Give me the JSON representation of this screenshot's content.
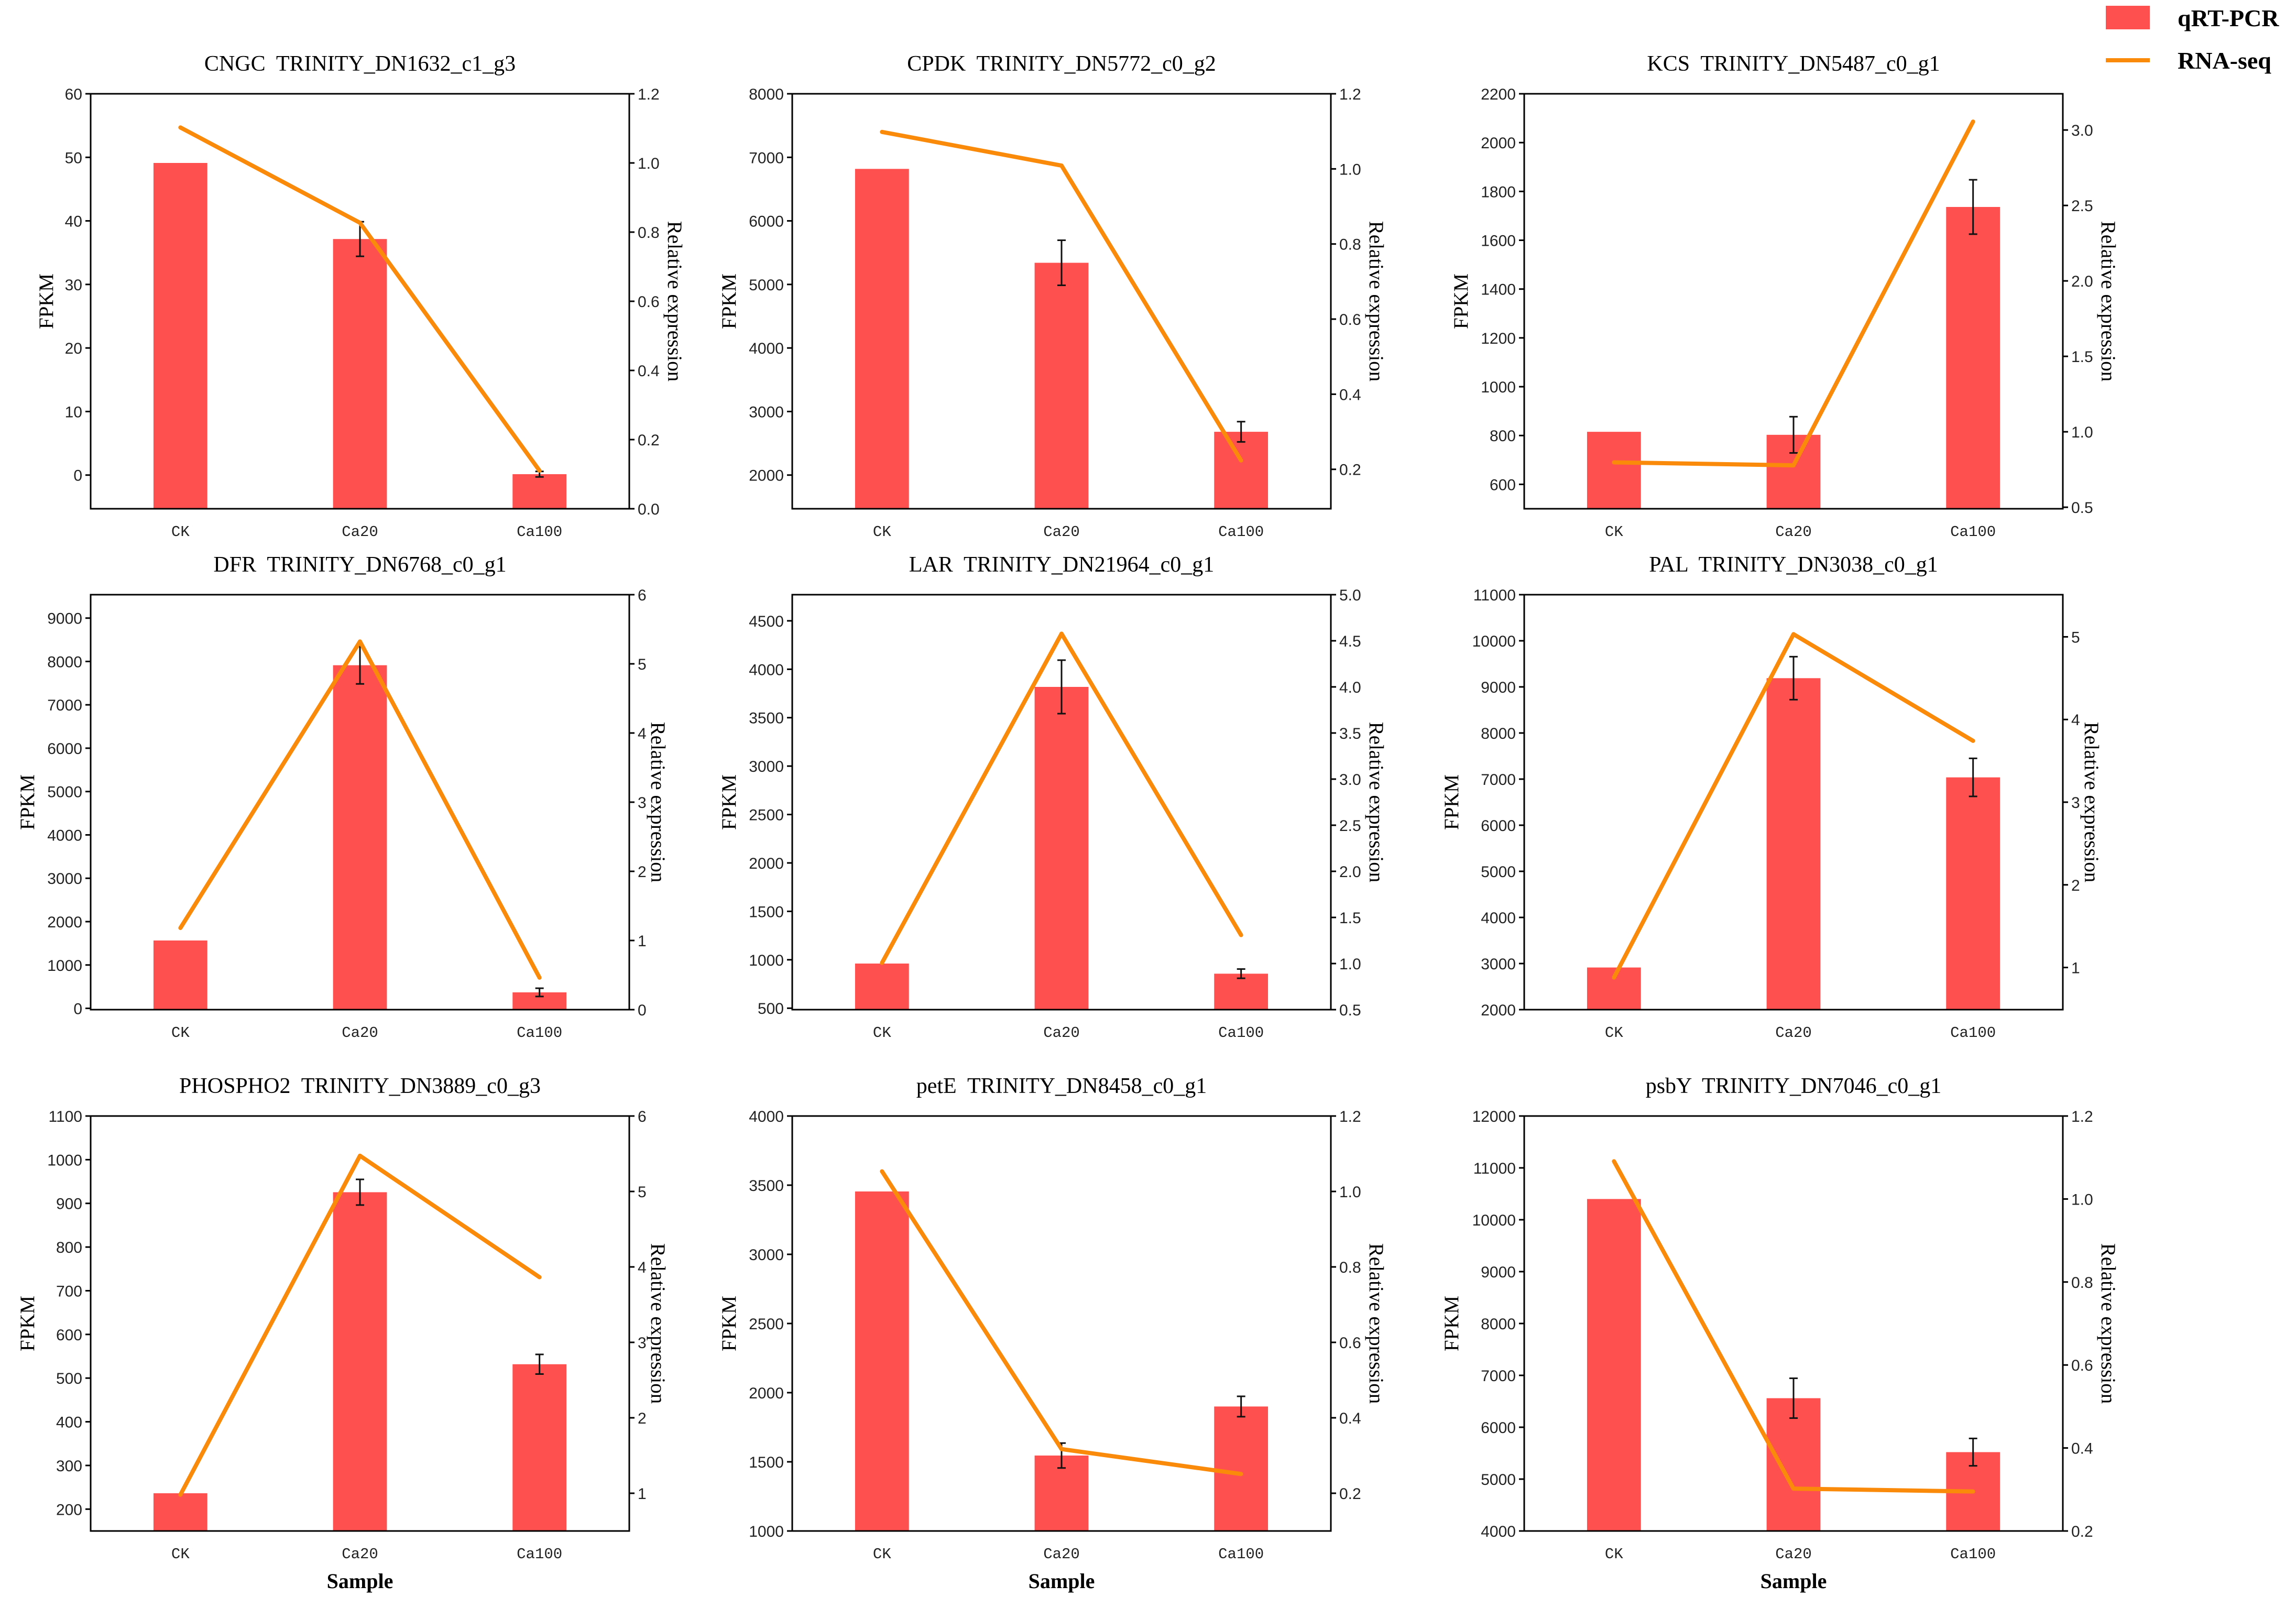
{
  "chart_data": [
    {
      "type": "bar",
      "title": "CNGC  TRINITY_DN1632_c1_g3",
      "categories": [
        "CK",
        "Ca20",
        "Ca100"
      ],
      "xlabel": "",
      "ylabel": "FPKM",
      "y2label": "Relative expression",
      "ylim": [
        -5.3,
        60
      ],
      "yticks": [
        "0",
        "10",
        "20",
        "30",
        "40",
        "50",
        "60"
      ],
      "y2lim": [
        0,
        1.2
      ],
      "y2ticks": [
        "0.0",
        "0.2",
        "0.4",
        "0.6",
        "0.8",
        "1.0",
        "1.2"
      ],
      "series": [
        {
          "name": "qRT-PCR",
          "type": "bar",
          "y_axis": 2,
          "color": "#FF5050",
          "values": [
            1.0,
            0.78,
            0.1
          ],
          "errors": [
            0,
            0.05,
            0.008
          ]
        },
        {
          "name": "RNA-seq",
          "type": "line",
          "y_axis": 1,
          "color": "#FA8A0A",
          "values": [
            54.7,
            39.7,
            0.7
          ]
        }
      ]
    },
    {
      "type": "bar",
      "title": "CPDK  TRINITY_DN5772_c0_g2",
      "categories": [
        "CK",
        "Ca20",
        "Ca100"
      ],
      "xlabel": "",
      "ylabel": "FPKM",
      "y2label": "Relative expression",
      "ylim": [
        1470,
        8000
      ],
      "yticks": [
        "2000",
        "3000",
        "4000",
        "5000",
        "6000",
        "7000",
        "8000"
      ],
      "y2lim": [
        0.095,
        1.2
      ],
      "y2ticks": [
        "0.2",
        "0.4",
        "0.6",
        "0.8",
        "1.0",
        "1.2"
      ],
      "series": [
        {
          "name": "qRT-PCR",
          "type": "bar",
          "y_axis": 2,
          "color": "#FF5050",
          "values": [
            1.0,
            0.75,
            0.3
          ],
          "errors": [
            0,
            0.06,
            0.027
          ]
        },
        {
          "name": "RNA-seq",
          "type": "line",
          "y_axis": 1,
          "color": "#FA8A0A",
          "values": [
            7400,
            6870,
            2230
          ]
        }
      ]
    },
    {
      "type": "bar",
      "title": "KCS  TRINITY_DN5487_c0_g1",
      "categories": [
        "CK",
        "Ca20",
        "Ca100"
      ],
      "xlabel": "",
      "ylabel": "FPKM",
      "y2label": "Relative expression",
      "ylim": [
        500,
        2200
      ],
      "yticks": [
        "600",
        "800",
        "1000",
        "1200",
        "1400",
        "1600",
        "1800",
        "2000",
        "2200"
      ],
      "y2lim": [
        0.49,
        3.24
      ],
      "y2ticks": [
        "0.5",
        "1.0",
        "1.5",
        "2.0",
        "2.5",
        "3.0"
      ],
      "series": [
        {
          "name": "qRT-PCR",
          "type": "bar",
          "y_axis": 2,
          "color": "#FF5050",
          "values": [
            1.0,
            0.98,
            2.49
          ],
          "errors": [
            0,
            0.12,
            0.18
          ]
        },
        {
          "name": "RNA-seq",
          "type": "line",
          "y_axis": 1,
          "color": "#FA8A0A",
          "values": [
            690,
            678,
            2086
          ]
        }
      ]
    },
    {
      "type": "bar",
      "title": "DFR  TRINITY_DN6768_c0_g1",
      "categories": [
        "CK",
        "Ca20",
        "Ca100"
      ],
      "xlabel": "",
      "ylabel": "FPKM",
      "y2label": "Relative expression",
      "ylim": [
        -30,
        9540
      ],
      "yticks": [
        "0",
        "1000",
        "2000",
        "3000",
        "4000",
        "5000",
        "6000",
        "7000",
        "8000",
        "9000"
      ],
      "y2lim": [
        0,
        6
      ],
      "y2ticks": [
        "0",
        "1",
        "2",
        "3",
        "4",
        "5",
        "6"
      ],
      "series": [
        {
          "name": "qRT-PCR",
          "type": "bar",
          "y_axis": 2,
          "color": "#FF5050",
          "values": [
            1.0,
            4.98,
            0.25
          ],
          "errors": [
            0,
            0.27,
            0.06
          ]
        },
        {
          "name": "RNA-seq",
          "type": "line",
          "y_axis": 1,
          "color": "#FA8A0A",
          "values": [
            1854,
            8460,
            708
          ]
        }
      ]
    },
    {
      "type": "bar",
      "title": "LAR  TRINITY_DN21964_c0_g1",
      "categories": [
        "CK",
        "Ca20",
        "Ca100"
      ],
      "xlabel": "",
      "ylabel": "FPKM",
      "y2label": "Relative expression",
      "ylim": [
        485,
        4770
      ],
      "yticks": [
        "500",
        "1000",
        "1500",
        "2000",
        "2500",
        "3000",
        "3500",
        "4000",
        "4500"
      ],
      "y2lim": [
        0.5,
        5.0
      ],
      "y2ticks": [
        "0.5",
        "1.0",
        "1.5",
        "2.0",
        "2.5",
        "3.0",
        "3.5",
        "4.0",
        "4.5",
        "5.0"
      ],
      "series": [
        {
          "name": "qRT-PCR",
          "type": "bar",
          "y_axis": 2,
          "color": "#FF5050",
          "values": [
            1.0,
            4.0,
            0.89
          ],
          "errors": [
            0,
            0.29,
            0.05
          ]
        },
        {
          "name": "RNA-seq",
          "type": "line",
          "y_axis": 1,
          "color": "#FA8A0A",
          "values": [
            968,
            4367,
            1255
          ]
        }
      ]
    },
    {
      "type": "bar",
      "title": "PAL  TRINITY_DN3038_c0_g1",
      "categories": [
        "CK",
        "Ca20",
        "Ca100"
      ],
      "xlabel": "",
      "ylabel": "FPKM",
      "y2label": "Relative expression",
      "ylim": [
        2000,
        11000
      ],
      "yticks": [
        "2000",
        "3000",
        "4000",
        "5000",
        "6000",
        "7000",
        "8000",
        "9000",
        "10000",
        "11000"
      ],
      "y2lim": [
        0.49,
        5.51
      ],
      "y2ticks": [
        "1",
        "2",
        "3",
        "4",
        "5"
      ],
      "series": [
        {
          "name": "qRT-PCR",
          "type": "bar",
          "y_axis": 2,
          "color": "#FF5050",
          "values": [
            1.0,
            4.5,
            3.3
          ],
          "errors": [
            0,
            0.26,
            0.23
          ]
        },
        {
          "name": "RNA-seq",
          "type": "line",
          "y_axis": 1,
          "color": "#FA8A0A",
          "values": [
            2697,
            10143,
            7830
          ]
        }
      ]
    },
    {
      "type": "bar",
      "title": "PHOSPHO2  TRINITY_DN3889_c0_g3",
      "categories": [
        "CK",
        "Ca20",
        "Ca100"
      ],
      "xlabel": "Sample",
      "ylabel": "FPKM",
      "y2label": "Relative expression",
      "ylim": [
        150,
        1100
      ],
      "yticks": [
        "200",
        "300",
        "400",
        "500",
        "600",
        "700",
        "800",
        "900",
        "1000",
        "1100"
      ],
      "y2lim": [
        0.5,
        6
      ],
      "y2ticks": [
        "1",
        "2",
        "3",
        "4",
        "5",
        "6"
      ],
      "series": [
        {
          "name": "qRT-PCR",
          "type": "bar",
          "y_axis": 2,
          "color": "#FF5050",
          "values": [
            1.0,
            4.99,
            2.71
          ],
          "errors": [
            0,
            0.17,
            0.13
          ]
        },
        {
          "name": "RNA-seq",
          "type": "line",
          "y_axis": 1,
          "color": "#FA8A0A",
          "values": [
            233,
            1009,
            731
          ]
        }
      ]
    },
    {
      "type": "bar",
      "title": "petE  TRINITY_DN8458_c0_g1",
      "categories": [
        "CK",
        "Ca20",
        "Ca100"
      ],
      "xlabel": "Sample",
      "ylabel": "FPKM",
      "y2label": "Relative expression",
      "ylim": [
        1000,
        4000
      ],
      "yticks": [
        "1000",
        "1500",
        "2000",
        "2500",
        "3000",
        "3500",
        "4000"
      ],
      "y2lim": [
        0.1,
        1.2
      ],
      "y2ticks": [
        "0.2",
        "0.4",
        "0.6",
        "0.8",
        "1.0",
        "1.2"
      ],
      "series": [
        {
          "name": "qRT-PCR",
          "type": "bar",
          "y_axis": 2,
          "color": "#FF5050",
          "values": [
            1.0,
            0.3,
            0.43
          ],
          "errors": [
            0,
            0.033,
            0.027
          ]
        },
        {
          "name": "RNA-seq",
          "type": "line",
          "y_axis": 1,
          "color": "#FA8A0A",
          "values": [
            3600,
            1592,
            1412
          ]
        }
      ]
    },
    {
      "type": "bar",
      "title": "psbY  TRINITY_DN7046_c0_g1",
      "categories": [
        "CK",
        "Ca20",
        "Ca100"
      ],
      "xlabel": "Sample",
      "ylabel": "FPKM",
      "y2label": "Relative expression",
      "ylim": [
        4000,
        12000
      ],
      "yticks": [
        "4000",
        "5000",
        "6000",
        "7000",
        "8000",
        "9000",
        "10000",
        "11000",
        "12000"
      ],
      "y2lim": [
        0.2,
        1.2
      ],
      "y2ticks": [
        "0.2",
        "0.4",
        "0.6",
        "0.8",
        "1.0",
        "1.2"
      ],
      "series": [
        {
          "name": "qRT-PCR",
          "type": "bar",
          "y_axis": 2,
          "color": "#FF5050",
          "values": [
            1.0,
            0.52,
            0.39
          ],
          "errors": [
            0,
            0.048,
            0.033
          ]
        },
        {
          "name": "RNA-seq",
          "type": "line",
          "y_axis": 1,
          "color": "#FA8A0A",
          "values": [
            11127,
            4817,
            4761
          ]
        }
      ]
    }
  ]
}
